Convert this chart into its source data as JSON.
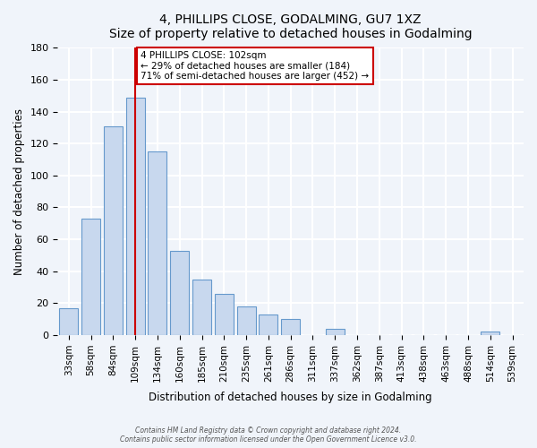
{
  "title": "4, PHILLIPS CLOSE, GODALMING, GU7 1XZ",
  "subtitle": "Size of property relative to detached houses in Godalming",
  "xlabel": "Distribution of detached houses by size in Godalming",
  "ylabel": "Number of detached properties",
  "bar_color": "#c8d8ee",
  "bar_edge_color": "#6699cc",
  "categories": [
    "33sqm",
    "58sqm",
    "84sqm",
    "109sqm",
    "134sqm",
    "160sqm",
    "185sqm",
    "210sqm",
    "235sqm",
    "261sqm",
    "286sqm",
    "311sqm",
    "337sqm",
    "362sqm",
    "387sqm",
    "413sqm",
    "438sqm",
    "463sqm",
    "488sqm",
    "514sqm",
    "539sqm"
  ],
  "values": [
    17,
    73,
    131,
    149,
    115,
    53,
    35,
    26,
    18,
    13,
    10,
    0,
    4,
    0,
    0,
    0,
    0,
    0,
    0,
    2,
    0
  ],
  "ylim": [
    0,
    180
  ],
  "yticks": [
    0,
    20,
    40,
    60,
    80,
    100,
    120,
    140,
    160,
    180
  ],
  "vline_x": 3,
  "vline_color": "#cc0000",
  "annotation_text": "4 PHILLIPS CLOSE: 102sqm\n← 29% of detached houses are smaller (184)\n71% of semi-detached houses are larger (452) →",
  "annotation_box_color": "#ffffff",
  "annotation_box_edge": "#cc0000",
  "footer_line1": "Contains HM Land Registry data © Crown copyright and database right 2024.",
  "footer_line2": "Contains public sector information licensed under the Open Government Licence v3.0.",
  "background_color": "#f0f4fa",
  "grid_color": "#ffffff"
}
